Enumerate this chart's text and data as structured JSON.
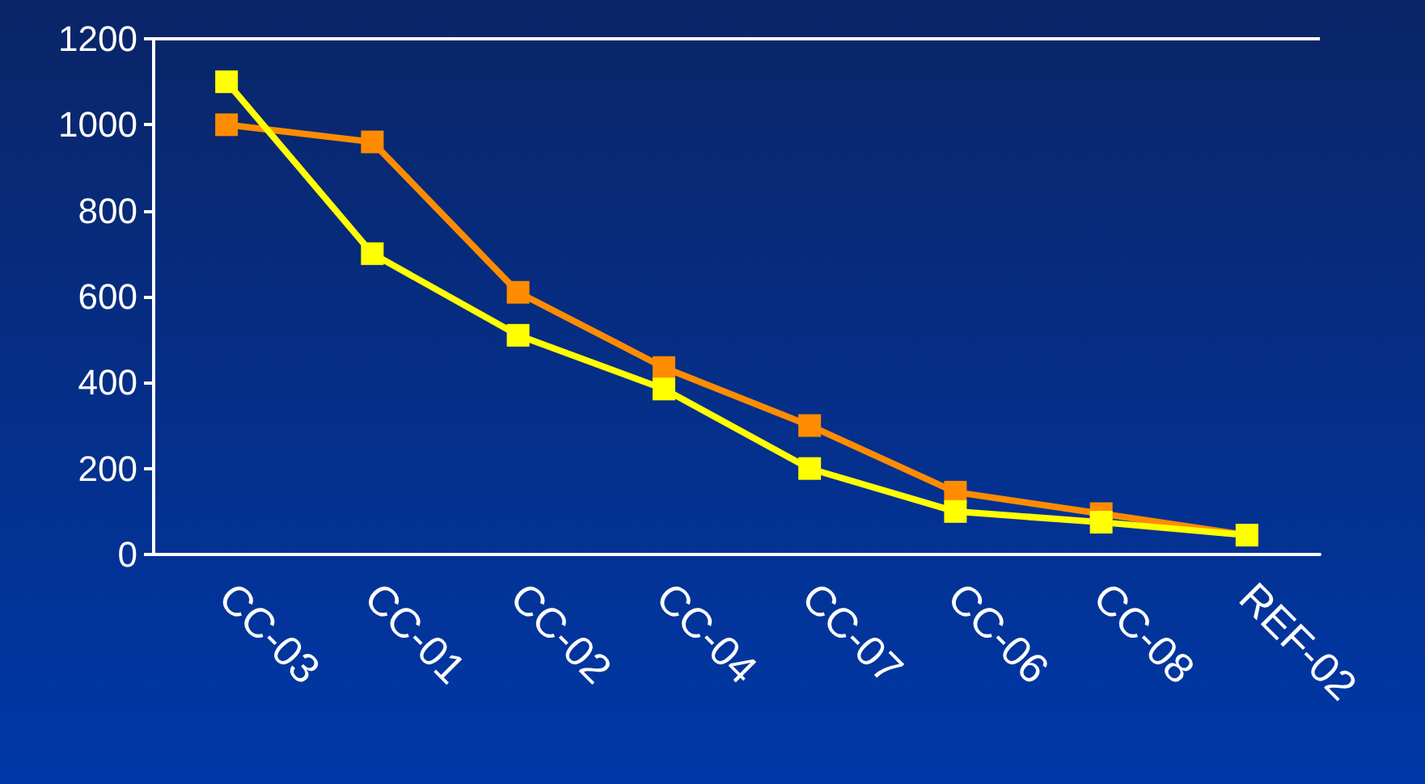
{
  "chart_data": {
    "type": "line",
    "categories": [
      "CC-03",
      "CC-01",
      "CC-02",
      "CC-04",
      "CC-07",
      "CC-06",
      "CC-08",
      "REF-02"
    ],
    "series": [
      {
        "color": "#ff8c00",
        "values": [
          1000,
          960,
          610,
          435,
          300,
          145,
          95,
          45
        ]
      },
      {
        "color": "#ffff00",
        "values": [
          1100,
          700,
          510,
          385,
          200,
          100,
          75,
          45
        ]
      }
    ],
    "ylim": [
      0,
      1200
    ],
    "yticks": [
      0,
      200,
      400,
      600,
      800,
      1000,
      1200
    ],
    "marker": "square",
    "line_style": "solid",
    "grid": false,
    "ref_lines": [
      {
        "axis": "y",
        "value": 1200,
        "color": "#ffffff",
        "line_style": "solid"
      }
    ]
  }
}
